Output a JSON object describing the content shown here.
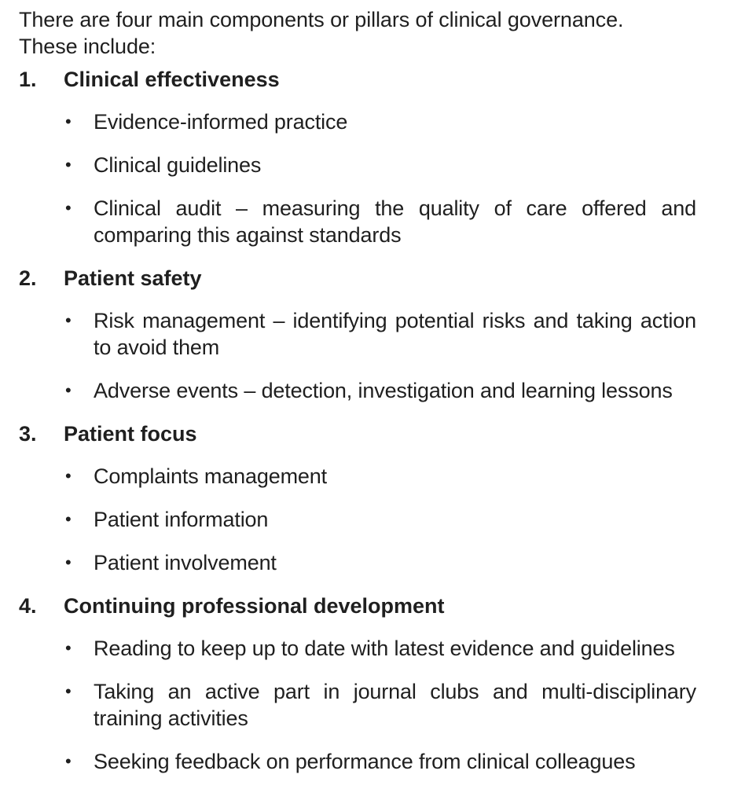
{
  "intro": {
    "line1": "There are four main components or pillars of clinical governance.",
    "line2": "These include:"
  },
  "sections": [
    {
      "number": "1.",
      "title": "Clinical effectiveness",
      "bullets": [
        "Evidence-informed practice",
        "Clinical guidelines",
        "Clinical audit – measuring the quality of care offered and comparing this against standards"
      ]
    },
    {
      "number": "2.",
      "title": "Patient safety",
      "bullets": [
        "Risk management – identifying potential risks and taking action to avoid them",
        "Adverse events – detection, investigation and learning lessons"
      ]
    },
    {
      "number": "3.",
      "title": "Patient focus",
      "bullets": [
        "Complaints management",
        "Patient information",
        "Patient involvement"
      ]
    },
    {
      "number": "4.",
      "title": "Continuing professional development",
      "bullets": [
        "Reading to keep up to date with latest evidence and guidelines",
        "Taking an active part in journal clubs and multi-disciplinary training activities",
        "Seeking feedback on performance from clinical colleagues"
      ]
    }
  ]
}
